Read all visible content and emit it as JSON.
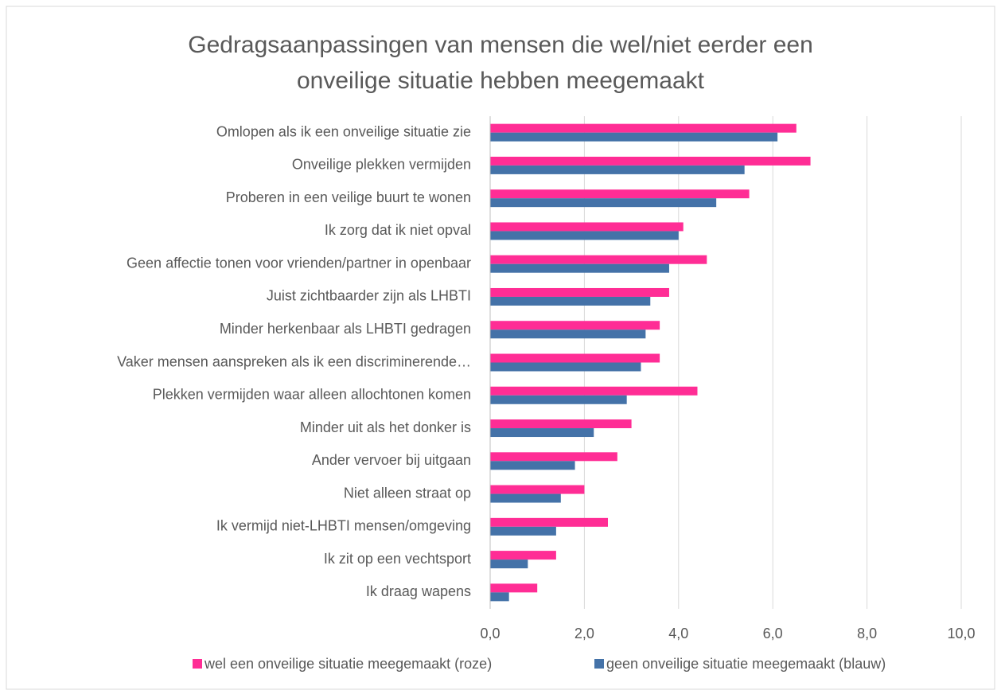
{
  "chart_data": {
    "type": "barh",
    "title": [
      "Gedragsaanpassingen van mensen die wel/niet eerder een",
      "onveilige situatie hebben meegemaakt"
    ],
    "categories": [
      "Omlopen als ik een onveilige situatie zie",
      "Onveilige plekken vermijden",
      "Proberen in een veilige buurt te wonen",
      "Ik zorg dat ik niet opval",
      "Geen affectie tonen voor vrienden/partner in openbaar",
      "Juist zichtbaarder zijn als LHBTI",
      "Minder herkenbaar als LHBTI gedragen",
      "Vaker mensen aanspreken als ik een discriminerende…",
      "Plekken vermijden waar alleen allochtonen komen",
      "Minder uit als het donker is",
      "Ander vervoer bij uitgaan",
      "Niet alleen straat op",
      "Ik vermijd niet-LHBTI mensen/omgeving",
      "Ik zit op een vechtsport",
      "Ik draag wapens"
    ],
    "series": [
      {
        "name": "wel een onveilige situatie meegemaakt (roze)",
        "color": "#ff2d95",
        "values": [
          6.5,
          6.8,
          5.5,
          4.1,
          4.6,
          3.8,
          3.6,
          3.6,
          4.4,
          3.0,
          2.7,
          2.0,
          2.5,
          1.4,
          1.0
        ]
      },
      {
        "name": "geen onveilige situatie meegemaakt (blauw)",
        "color": "#4472a8",
        "values": [
          6.1,
          5.4,
          4.8,
          4.0,
          3.8,
          3.4,
          3.3,
          3.2,
          2.9,
          2.2,
          1.8,
          1.5,
          1.4,
          0.8,
          0.4
        ]
      }
    ],
    "xlim": [
      0,
      10
    ],
    "xticks": [
      {
        "value": 0,
        "label": "0,0"
      },
      {
        "value": 2,
        "label": "2,0"
      },
      {
        "value": 4,
        "label": "4,0"
      },
      {
        "value": 6,
        "label": "6,0"
      },
      {
        "value": 8,
        "label": "8,0"
      },
      {
        "value": 10,
        "label": "10,0"
      }
    ],
    "grid": true
  }
}
